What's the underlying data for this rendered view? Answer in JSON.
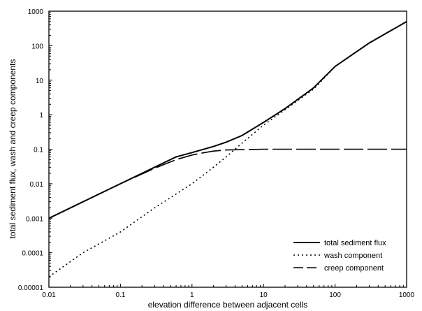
{
  "chart_data": {
    "type": "line",
    "title": "",
    "xlabel": "elevation difference between adjacent cells",
    "ylabel": "total sediment flux, wash and creep components",
    "xscale": "log",
    "yscale": "log",
    "xlim": [
      0.01,
      1000
    ],
    "ylim": [
      1e-05,
      1000
    ],
    "xticks": [
      "0.01",
      "0.1",
      "1",
      "10",
      "100",
      "1000"
    ],
    "yticks": [
      "0.00001",
      "0.0001",
      "0.001",
      "0.01",
      "0.1",
      "1",
      "10",
      "100",
      "1000"
    ],
    "grid": false,
    "legend_position": "bottom-right",
    "series": [
      {
        "name": "total sediment flux",
        "style": "solid",
        "x": [
          0.01,
          0.03,
          0.1,
          0.3,
          0.6,
          1,
          2,
          3,
          5,
          10,
          20,
          50,
          100,
          300,
          1000
        ],
        "y": [
          0.001,
          0.003,
          0.01,
          0.03,
          0.06,
          0.08,
          0.12,
          0.16,
          0.25,
          0.6,
          1.5,
          6,
          25,
          120,
          500
        ]
      },
      {
        "name": "wash component",
        "style": "dotted",
        "x": [
          0.01,
          0.03,
          0.1,
          0.3,
          1,
          2,
          3,
          5,
          10,
          20,
          50,
          100,
          300,
          1000
        ],
        "y": [
          2e-05,
          0.0001,
          0.0004,
          0.002,
          0.01,
          0.03,
          0.06,
          0.15,
          0.5,
          1.4,
          5.5,
          25,
          120,
          500
        ]
      },
      {
        "name": "creep component",
        "style": "dashed",
        "x": [
          0.01,
          0.03,
          0.1,
          0.3,
          0.6,
          1,
          1.5,
          2,
          3,
          10,
          100,
          1000
        ],
        "y": [
          0.001,
          0.003,
          0.01,
          0.028,
          0.05,
          0.068,
          0.08,
          0.088,
          0.095,
          0.1,
          0.1,
          0.1
        ]
      }
    ]
  }
}
